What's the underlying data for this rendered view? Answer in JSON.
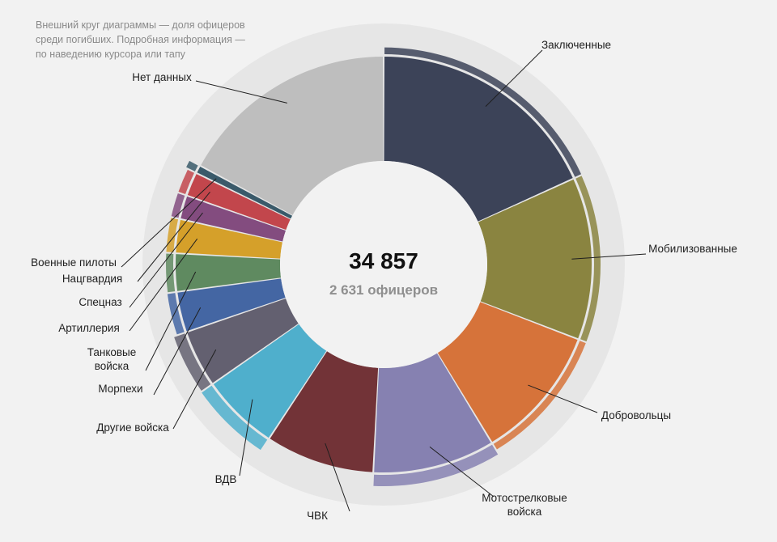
{
  "note": {
    "line1": "Внешний круг диаграммы — доля офицеров",
    "line2": "среди погибших. Подробная информация —",
    "line3": "по наведению курсора или тапу"
  },
  "center": {
    "total": "34 857",
    "subtitle": "2 631 офицеров"
  },
  "chart_data": {
    "type": "pie",
    "subtype": "donut-with-outer-officer-ring",
    "total": 34857,
    "officers_total": 2631,
    "categories": [
      "Заключенные",
      "Мобилизованные",
      "Добровольцы",
      "Мотострелковые войска",
      "ЧВК",
      "ВДВ",
      "Другие войска",
      "Морпехи",
      "Танковые войска",
      "Артиллерия",
      "Спецназ",
      "Нацгвардия",
      "Военные пилоты",
      "Нет данных"
    ],
    "display_labels": [
      [
        "Заключенные"
      ],
      [
        "Мобилизованные"
      ],
      [
        "Добровольцы"
      ],
      [
        "Мотострелковые",
        "войска"
      ],
      [
        "ЧВК"
      ],
      [
        "ВДВ"
      ],
      [
        "Другие войска"
      ],
      [
        "Морпехи"
      ],
      [
        "Танковые",
        "войска"
      ],
      [
        "Артиллерия"
      ],
      [
        "Спецназ"
      ],
      [
        "Нацгвардия"
      ],
      [
        "Военные пилоты"
      ],
      [
        "Нет данных"
      ]
    ],
    "values": [
      6350,
      4390,
      3650,
      3300,
      2950,
      2100,
      1550,
      1100,
      1030,
      920,
      650,
      650,
      220,
      5967
    ],
    "colors": [
      "#3c4358",
      "#8a8440",
      "#d6733a",
      "#8681b1",
      "#723337",
      "#4fafcc",
      "#636070",
      "#4466a3",
      "#5f8a60",
      "#d5a02a",
      "#834c7f",
      "#c2464c",
      "#3a5a6a",
      "#bebebe"
    ],
    "officer_share_level": [
      0.12,
      0.1,
      0.1,
      0.4,
      0.0,
      0.45,
      0.4,
      0.18,
      0.15,
      0.15,
      0.15,
      0.15,
      0.3,
      0.0
    ]
  }
}
